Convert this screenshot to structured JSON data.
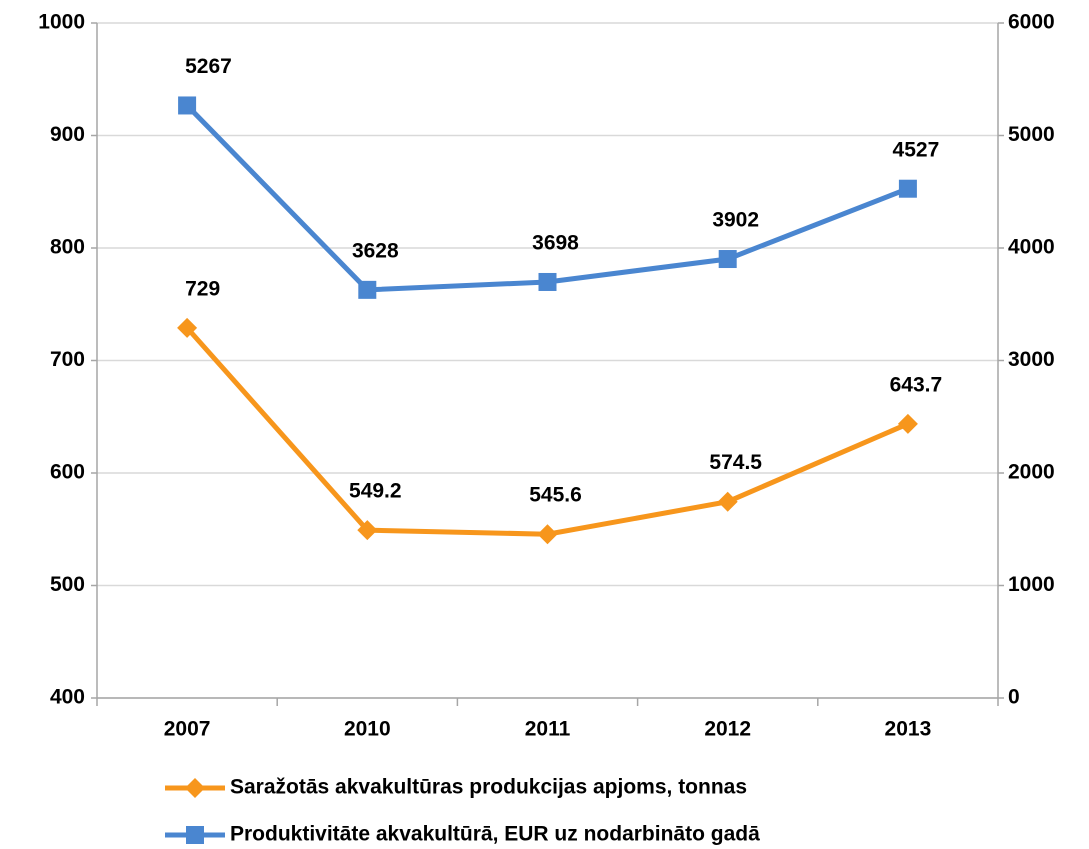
{
  "chart_data": {
    "type": "line",
    "categories": [
      "2007",
      "2010",
      "2011",
      "2012",
      "2013"
    ],
    "series": [
      {
        "name": "Saražotās akvakultūras produkcijas apjoms, tonnas",
        "color": "#f7961c",
        "marker": "diamond",
        "values": [
          729,
          549.2,
          545.6,
          574.5,
          643.7
        ]
      },
      {
        "name": "Produktivitāte akvakultūrā, EUR uz nodarbināto gadā",
        "color": "#4a86d0",
        "marker": "square",
        "axis": "y2",
        "values": [
          5267,
          3628,
          3698,
          3902,
          4527
        ]
      }
    ],
    "ylim": [
      400,
      1000
    ],
    "yticks": [
      400,
      500,
      600,
      700,
      800,
      900,
      1000
    ],
    "y2lim": [
      0,
      6000
    ],
    "y2ticks": [
      0,
      1000,
      2000,
      3000,
      4000,
      5000,
      6000
    ],
    "grid": true,
    "legend": "bottom"
  }
}
